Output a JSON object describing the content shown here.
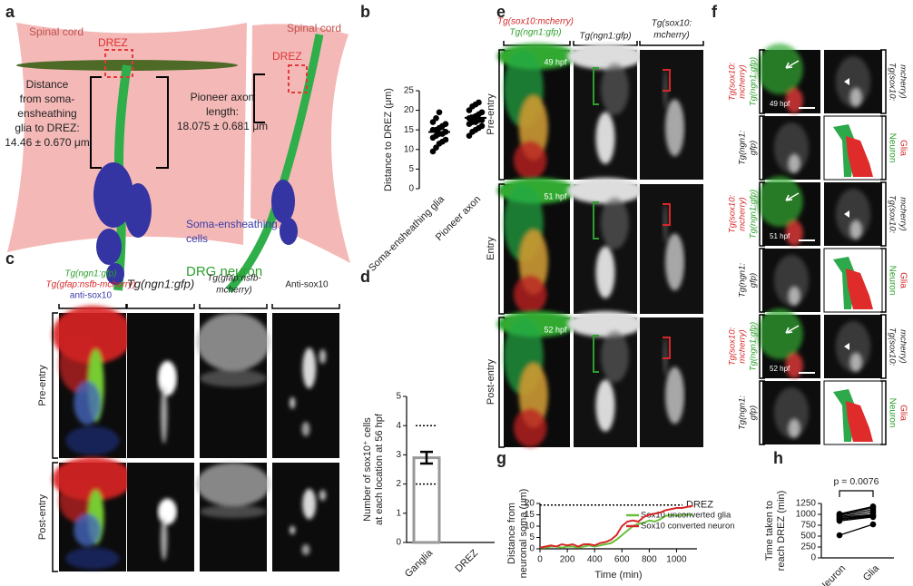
{
  "panels": {
    "a": {
      "label": "a",
      "spinal_cord_left": "Spinal cord",
      "spinal_cord_right": "Spinal cord",
      "drez_left": "DREZ",
      "drez_right": "DREZ",
      "distance_note": [
        "Distance",
        "from soma-",
        "ensheathing",
        "glia to DREZ:",
        "14.46 ± 0.670 μm"
      ],
      "axon_note": [
        "Pioneer axon",
        "length:",
        "18.075 ± 0.681 μm"
      ],
      "cells": [
        "Soma-ensheathing",
        "cells"
      ],
      "neuron": "DRG neuron"
    },
    "c": {
      "label": "c",
      "col1": [
        "Tg(ngn1:gfp)",
        "Tg(gfap:nsfb-mcherry)",
        "anti-sox10"
      ],
      "col2": "Tg(ngn1:gfp)",
      "col3": [
        "Tg(gfap:nsfb-",
        "mcherry)"
      ],
      "col4": "Anti-sox10",
      "rows": [
        "Pre-entry",
        "Post-entry"
      ]
    },
    "e": {
      "label": "e",
      "col1": [
        "Tg(sox10:mcherry)",
        "Tg(ngn1:gfp)"
      ],
      "col2": "Tg(ngn1:gfp)",
      "col3": [
        "Tg(sox10:",
        "mcherry)"
      ],
      "rows": [
        "Pre-entry",
        "Entry",
        "Post-entry"
      ],
      "times": [
        "49 hpf",
        "51 hpf",
        "52 hpf"
      ]
    },
    "f": {
      "label": "f",
      "groups": [
        {
          "merge_left": [
            "Tg(sox10:",
            "mcherry)",
            "Tg(ngn1:gfp)"
          ],
          "merge_right": [
            "Tg(sox10:",
            "mcherry)"
          ],
          "gray_left": [
            "Tg(ngn1:",
            "gfp)"
          ],
          "neuron": "Neuron",
          "glia": "Glia",
          "time": "49 hpf"
        },
        {
          "merge_left": [
            "Tg(sox10:",
            "mcherry)",
            "Tg(ngn1:gfp)"
          ],
          "merge_right": [
            "Tg(sox10:",
            "mcherry)"
          ],
          "gray_left": [
            "Tg(ngn1:",
            "gfp)"
          ],
          "neuron": "Neuron",
          "glia": "Glia",
          "time": "51 hpf"
        },
        {
          "merge_left": [
            "Tg(sox10:",
            "mcherry)",
            "Tg(ngn1:gfp)"
          ],
          "merge_right": [
            "Tg(sox10:",
            "mcherry)"
          ],
          "gray_left": [
            "Tg(ngn1:",
            "gfp)"
          ],
          "neuron": "Neuron",
          "glia": "Glia",
          "time": "52 hpf"
        }
      ]
    }
  },
  "chart_data": [
    {
      "type": "dot",
      "panel": "b",
      "y_label": "Distance to DREZ (μm)",
      "categories": [
        "Soma-ensheathing glia",
        "Pioneer axon"
      ],
      "values": [
        [
          9.5,
          10.5,
          11.5,
          12,
          12.5,
          13,
          13.5,
          14,
          14,
          14.5,
          15,
          15,
          15.5,
          16,
          16.5,
          17,
          18,
          19.5
        ],
        [
          13.5,
          14.5,
          15,
          15.5,
          16,
          16.5,
          17,
          17,
          17.5,
          17.5,
          18,
          18,
          18.5,
          19,
          19.5,
          20,
          21,
          21.5,
          22
        ]
      ],
      "means": [
        14.46,
        18.075
      ],
      "errors": [
        0.67,
        0.681
      ],
      "color": "#000000",
      "ylim": [
        0,
        25
      ],
      "yticks": [
        0,
        5,
        10,
        15,
        20,
        25
      ]
    },
    {
      "type": "bar",
      "panel": "d",
      "y_label": [
        "Number of sox10⁺ cells",
        "at each location at 56 hpf"
      ],
      "categories": [
        "Ganglia",
        "DREZ"
      ],
      "values": [
        2.9,
        0
      ],
      "errors": [
        0.2,
        0
      ],
      "ranges": [
        [
          2,
          4
        ],
        null
      ],
      "color": "#999999",
      "ylim": [
        0,
        5
      ],
      "yticks": [
        0,
        1,
        2,
        3,
        4,
        5
      ]
    },
    {
      "type": "line",
      "panel": "g",
      "y_label": [
        "Distance from",
        "neuronal soma (μm)"
      ],
      "x_label": "Time (min)",
      "x": [
        0,
        40,
        80,
        120,
        160,
        200,
        240,
        280,
        320,
        360,
        400,
        440,
        480,
        520,
        560,
        600,
        640,
        680,
        720,
        760,
        800,
        840,
        880,
        920,
        960,
        1000,
        1040,
        1080,
        1120
      ],
      "series": [
        {
          "name": "Sox10 unconverted glia",
          "color": "#6abf3b",
          "values": [
            0.5,
            0.5,
            1,
            1,
            0.5,
            1,
            1,
            0.5,
            1,
            1.5,
            1,
            1.5,
            2,
            2.5,
            4,
            6,
            8,
            10,
            11,
            11.5,
            12.5,
            12,
            13,
            14.5,
            15,
            14.5,
            15,
            15,
            15
          ]
        },
        {
          "name": "Sox10 converted neuron",
          "color": "#d62728",
          "values": [
            0.5,
            1,
            1.5,
            1,
            2,
            1.5,
            2,
            1,
            2,
            2,
            1.5,
            2.5,
            3,
            4,
            6,
            10,
            12,
            12.5,
            12,
            14,
            15,
            15.5,
            16,
            17,
            17.5,
            18,
            18,
            18.5,
            19
          ]
        }
      ],
      "reference": {
        "value": 19.3,
        "label": "DREZ"
      },
      "legend": "lower right",
      "xlim": [
        0,
        1150
      ],
      "xticks": [
        0,
        200,
        400,
        600,
        800,
        1000
      ],
      "ylim": [
        0,
        20
      ],
      "yticks": [
        0,
        5,
        10,
        15,
        20
      ]
    },
    {
      "type": "paired",
      "panel": "h",
      "y_label": [
        "Time taken to",
        "reach DREZ (min)"
      ],
      "annotation": "p = 0.0076",
      "categories": [
        "Neuron",
        "Glia"
      ],
      "values": [
        [
          520,
          850,
          880,
          900,
          930,
          950,
          980,
          1000,
          1010
        ],
        [
          770,
          940,
          960,
          980,
          1000,
          1050,
          1100,
          1150,
          1180
        ]
      ],
      "color": "#000000",
      "ylim": [
        0,
        1250
      ],
      "yticks": [
        0,
        250,
        500,
        750,
        1000,
        1250
      ]
    }
  ]
}
